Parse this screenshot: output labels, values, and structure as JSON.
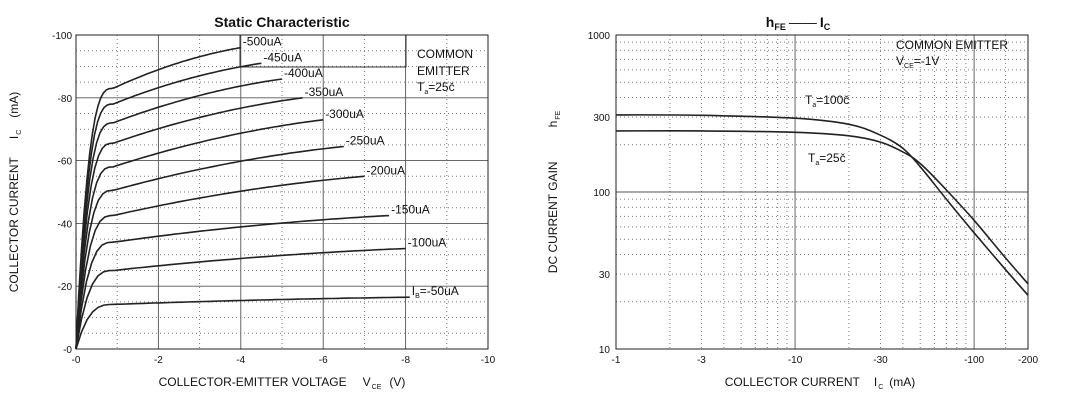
{
  "chart_data": [
    {
      "type": "line",
      "title": "Static Characteristic",
      "xlabel": "COLLECTOR-EMITTER VOLTAGE",
      "xlabel_symbol": "V",
      "xlabel_sub": "CE",
      "xlabel_unit": "(V)",
      "ylabel": "COLLECTOR CURRENT",
      "ylabel_symbol": "I",
      "ylabel_sub": "C",
      "ylabel_unit": "(mA)",
      "xlim": [
        0,
        -10
      ],
      "ylim": [
        0,
        -100
      ],
      "grid": true,
      "x_ticks": [
        "-0",
        "-2",
        "-4",
        "-6",
        "-8",
        "-10"
      ],
      "x_tick_values": [
        0,
        -2,
        -4,
        -6,
        -8,
        -10
      ],
      "y_ticks": [
        "-0",
        "-20",
        "-40",
        "-60",
        "-80",
        "-100"
      ],
      "y_tick_values": [
        0,
        -20,
        -40,
        -60,
        -80,
        -100
      ],
      "annotation_lines": [
        "COMMON",
        "EMITTER",
        "T",
        "a",
        "=25č"
      ],
      "ib_prefix": "I",
      "ib_prefix_sub": "B",
      "series": [
        {
          "name": "-50uA",
          "vce_end": -8.1,
          "i_sat": -14.2,
          "i_end": -16.5,
          "label": "=-50uA"
        },
        {
          "name": "-100uA",
          "vce_end": -8.0,
          "i_sat": -25.0,
          "i_end": -32.0,
          "label": "-100uA"
        },
        {
          "name": "-150uA",
          "vce_end": -7.6,
          "i_sat": -34.0,
          "i_end": -42.5,
          "label": "-150uA"
        },
        {
          "name": "-200uA",
          "vce_end": -7.0,
          "i_sat": -42.5,
          "i_end": -55.0,
          "label": "-200uA"
        },
        {
          "name": "-250uA",
          "vce_end": -6.5,
          "i_sat": -50.5,
          "i_end": -64.5,
          "label": "-250uA"
        },
        {
          "name": "-300uA",
          "vce_end": -6.0,
          "i_sat": -58.0,
          "i_end": -73.0,
          "label": "-300uA"
        },
        {
          "name": "-350uA",
          "vce_end": -5.5,
          "i_sat": -65.5,
          "i_end": -80.0,
          "label": "-350uA"
        },
        {
          "name": "-400uA",
          "vce_end": -5.0,
          "i_sat": -72.0,
          "i_end": -86.0,
          "label": "-400uA"
        },
        {
          "name": "-450uA",
          "vce_end": -4.5,
          "i_sat": -78.0,
          "i_end": -91.0,
          "label": "-450uA"
        },
        {
          "name": "-500uA",
          "vce_end": -4.0,
          "i_sat": -83.0,
          "i_end": -96.0,
          "label": "-500uA"
        }
      ]
    },
    {
      "type": "line",
      "title": "h",
      "title_sub": "FE",
      "title_dash": "——",
      "title_right": "I",
      "title_right_sub": "C",
      "xlabel": "COLLECTOR CURRENT",
      "xlabel_symbol": "I",
      "xlabel_sub": "C",
      "xlabel_unit": "(mA)",
      "ylabel": "DC CURRENT GAIN",
      "ylabel_symbol": "h",
      "ylabel_sub": "FE",
      "x_scale": "log",
      "y_scale": "log",
      "xlim": [
        -1,
        -200
      ],
      "ylim": [
        10,
        1000
      ],
      "grid": true,
      "x_ticks": [
        "-1",
        "-3",
        "-10",
        "-30",
        "-100",
        "-200"
      ],
      "x_tick_values": [
        1,
        3,
        10,
        30,
        100,
        200
      ],
      "y_ticks": [
        "10",
        "30",
        "100",
        "300",
        "1000"
      ],
      "y_tick_values": [
        10,
        30,
        100,
        300,
        1000
      ],
      "annotation_lines": [
        "COMMON EMITTER",
        "V",
        "CE",
        "=-1V"
      ],
      "series": [
        {
          "name": "T",
          "name_sub": "a",
          "name_rest": "=100č",
          "x": [
            -1,
            -3,
            -10,
            -20,
            -30,
            -40,
            -50,
            -70,
            -100,
            -150,
            -200
          ],
          "y": [
            310,
            308,
            295,
            270,
            230,
            190,
            145,
            90,
            55,
            32,
            22
          ]
        },
        {
          "name": "T",
          "name_sub": "a",
          "name_rest": "=25č",
          "x": [
            -1,
            -3,
            -10,
            -20,
            -30,
            -40,
            -50,
            -70,
            -100,
            -150,
            -200
          ],
          "y": [
            245,
            245,
            240,
            228,
            208,
            180,
            152,
            103,
            66,
            38,
            26
          ]
        }
      ]
    }
  ]
}
